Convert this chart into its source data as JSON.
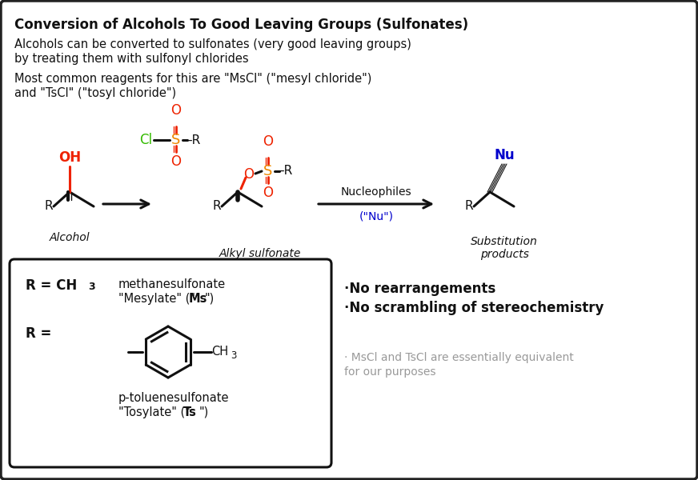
{
  "title": "Conversion of Alcohols To Good Leaving Groups (Sulfonates)",
  "sub1": "Alcohols can be converted to sulfonates (very good leaving groups)",
  "sub2": "by treating them with sulfonyl chlorides",
  "sub3": "Most common reagents for this are \"MsCl\" (\"mesyl chloride\")",
  "sub4": "and \"TsCl\" (\"tosyl chloride\")",
  "bg_color": "#ffffff",
  "border_color": "#222222",
  "text_color": "#111111",
  "red_color": "#ee2200",
  "orange_color": "#ee8800",
  "green_color": "#33bb00",
  "blue_color": "#0000cc",
  "gray_color": "#999999",
  "arrow_label1": "Nucleophiles",
  "arrow_label2": "(\"Nu\")",
  "bullet1": "·No rearrangements",
  "bullet2": "·No scrambling of stereochemistry",
  "gray1": "· MsCl and TsCl are essentially equivalent",
  "gray2": "for our purposes"
}
